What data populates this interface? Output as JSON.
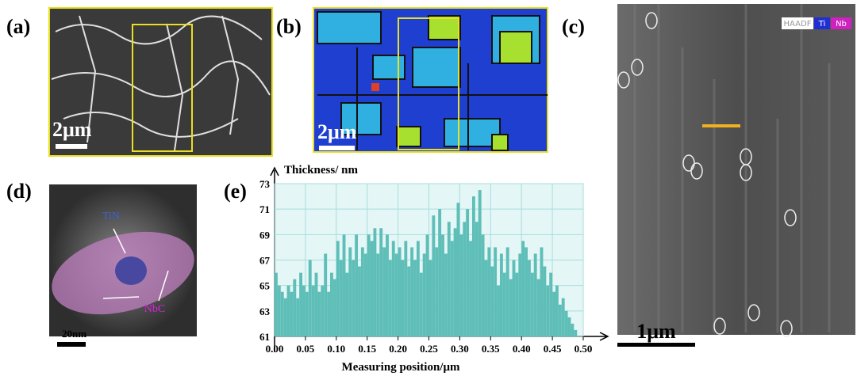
{
  "panels": {
    "a": {
      "label": "(a)",
      "scale": "2μm"
    },
    "b": {
      "label": "(b)",
      "scale": "2μm"
    },
    "c": {
      "label": "(c)",
      "scale": "1μm",
      "legend": [
        "HAADF",
        "Ti",
        "Nb"
      ]
    },
    "d": {
      "label": "(d)",
      "scale": "20nm",
      "annotations": [
        "TiN",
        "NbC"
      ]
    },
    "e": {
      "label": "(e)"
    }
  },
  "chart_data": {
    "type": "histogram",
    "y_label": "Thickness/ nm",
    "x_label": "Measuring position/μm",
    "color": "#5fbfb8",
    "grid": true,
    "xlim": [
      0,
      0.5
    ],
    "ylim": [
      61,
      73
    ],
    "xticks": [
      {
        "value": 0,
        "label": "0.00"
      },
      0.05,
      {
        "value": 0.1,
        "label": "0.10"
      },
      0.15,
      {
        "value": 0.2,
        "label": "0.20"
      },
      0.25,
      {
        "value": 0.3,
        "label": "0.30"
      },
      0.35,
      {
        "value": 0.4,
        "label": "0.40"
      },
      0.45,
      {
        "value": 0.5,
        "label": "0.50"
      }
    ],
    "yticks": [
      61,
      63,
      65,
      67,
      69,
      71,
      73
    ],
    "bins": [
      0,
      0.005,
      0.01,
      0.015,
      0.02,
      0.025,
      0.03,
      0.035,
      0.04,
      0.045,
      0.05,
      0.055,
      0.06,
      0.065,
      0.07,
      0.075,
      0.08,
      0.085,
      0.09,
      0.095,
      0.1,
      0.105,
      0.11,
      0.115,
      0.12,
      0.125,
      0.13,
      0.135,
      0.14,
      0.145,
      0.15,
      0.155,
      0.16,
      0.165,
      0.17,
      0.175,
      0.18,
      0.185,
      0.19,
      0.195,
      0.2,
      0.205,
      0.21,
      0.215,
      0.22,
      0.225,
      0.23,
      0.235,
      0.24,
      0.245,
      0.25,
      0.255,
      0.26,
      0.265,
      0.27,
      0.275,
      0.28,
      0.285,
      0.29,
      0.295,
      0.3,
      0.305,
      0.31,
      0.315,
      0.32,
      0.325,
      0.33,
      0.335,
      0.34,
      0.345,
      0.35,
      0.355,
      0.36,
      0.365,
      0.37,
      0.375,
      0.38,
      0.385,
      0.39,
      0.395,
      0.4,
      0.405,
      0.41,
      0.415,
      0.42,
      0.425,
      0.43,
      0.435,
      0.44,
      0.445,
      0.45,
      0.455,
      0.46,
      0.465,
      0.47,
      0.475,
      0.48,
      0.485,
      0.49
    ],
    "values": [
      66,
      65,
      64.5,
      64,
      65,
      64.5,
      65.5,
      64,
      66,
      65,
      64.5,
      67,
      65,
      66,
      64.5,
      65,
      67.5,
      64.5,
      66,
      65.5,
      68.5,
      67,
      69,
      66,
      68,
      67,
      69,
      66.5,
      68,
      67.5,
      69,
      68.5,
      69.5,
      67.5,
      69.5,
      68,
      69,
      67,
      68.5,
      67.5,
      68,
      67,
      68.5,
      66.5,
      68,
      67,
      68.5,
      66,
      67.5,
      69,
      67,
      70.5,
      68,
      71,
      69,
      67.5,
      70,
      68.5,
      69.5,
      71.5,
      69,
      70,
      71,
      68.5,
      72,
      70,
      72.5,
      69,
      67,
      68,
      66.5,
      68,
      65,
      67.5,
      66,
      68,
      65.5,
      67,
      66,
      67.5,
      68.5,
      68,
      67,
      66,
      67.5,
      65.5,
      68,
      66.5,
      65,
      66,
      64.5,
      65,
      63.5,
      64,
      63,
      62.5,
      62,
      61.5
    ]
  }
}
